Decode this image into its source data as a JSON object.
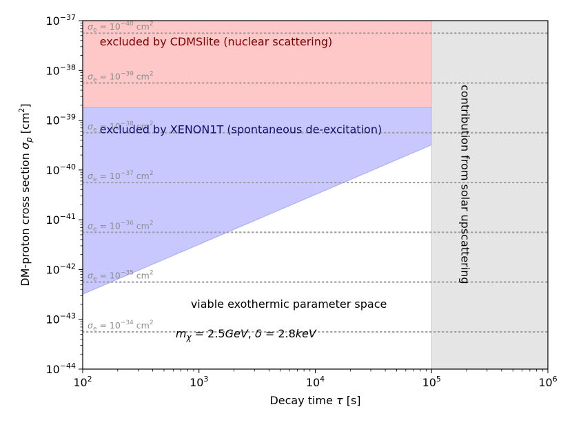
{
  "chart_data": {
    "type": "area",
    "xlabel": "Decay time τ [s]",
    "ylabel": "DM-proton cross section σ",
    "ylabel_sub": "p",
    "ylabel_unit": "[cm",
    "ylabel_unit_exp": "2",
    "ylabel_unit_close": "]",
    "x_scale": "log",
    "y_scale": "log",
    "xlim": [
      100,
      1000000
    ],
    "ylim": [
      1e-44,
      1e-37
    ],
    "x_ticks": [
      {
        "value": 100,
        "base": "10",
        "exp": "2"
      },
      {
        "value": 1000,
        "base": "10",
        "exp": "3"
      },
      {
        "value": 10000,
        "base": "10",
        "exp": "4"
      },
      {
        "value": 100000,
        "base": "10",
        "exp": "5"
      },
      {
        "value": 1000000,
        "base": "10",
        "exp": "6"
      }
    ],
    "y_ticks": [
      {
        "value": 1e-44,
        "base": "10",
        "exp": "−44"
      },
      {
        "value": 1e-43,
        "base": "10",
        "exp": "−43"
      },
      {
        "value": 1e-42,
        "base": "10",
        "exp": "−42"
      },
      {
        "value": 1e-41,
        "base": "10",
        "exp": "−41"
      },
      {
        "value": 1e-40,
        "base": "10",
        "exp": "−40"
      },
      {
        "value": 1e-39,
        "base": "10",
        "exp": "−39"
      },
      {
        "value": 1e-38,
        "base": "10",
        "exp": "−38"
      },
      {
        "value": 1e-37,
        "base": "10",
        "exp": "−37"
      }
    ],
    "regions": [
      {
        "label": "excluded by CDMSlite (nuclear scattering)",
        "color": "#ffc8c8",
        "edge_color": "#ffc8c8",
        "text_color": "#7a0000",
        "polygon": [
          [
            100,
            1e-37
          ],
          [
            100000,
            1e-37
          ],
          [
            100000,
            1.8e-39
          ],
          [
            100,
            1.8e-39
          ]
        ],
        "label_at": [
          140,
          3.2e-38
        ]
      },
      {
        "label": "excluded by XENON1T (spontaneous de-excitation)",
        "color": "#c8c8ff",
        "edge_color": "#a8a8f0",
        "text_color": "#10106e",
        "polygon": [
          [
            100,
            1.8e-39
          ],
          [
            100000,
            1.8e-39
          ],
          [
            100000,
            3.2e-40
          ],
          [
            100,
            3.2e-43
          ]
        ],
        "label_at": [
          140,
          5.5e-40
        ]
      },
      {
        "label": "contribution from solar upscattering",
        "color": "#e5e5e5",
        "edge_color": "#c8c8c8",
        "text_color": "#000000",
        "polygon": [
          [
            100000,
            1e-37
          ],
          [
            1000000,
            1e-37
          ],
          [
            1000000,
            1e-44
          ],
          [
            100000,
            1e-44
          ]
        ],
        "label_at": [
          180000,
          1e-40
        ],
        "rotate": true
      }
    ],
    "iso_sigma_e": [
      {
        "base": "σ",
        "sub": "e",
        "mid": " = 10",
        "exp": "−40",
        "unit": " cm",
        "unit_exp": "2",
        "y_value": 5.6e-38
      },
      {
        "base": "σ",
        "sub": "e",
        "mid": " = 10",
        "exp": "−39",
        "unit": " cm",
        "unit_exp": "2",
        "y_value": 5.6e-39
      },
      {
        "base": "σ",
        "sub": "e",
        "mid": " = 10",
        "exp": "−38",
        "unit": " cm",
        "unit_exp": "2",
        "y_value": 5.6e-40
      },
      {
        "base": "σ",
        "sub": "e",
        "mid": " = 10",
        "exp": "−37",
        "unit": " cm",
        "unit_exp": "2",
        "y_value": 5.6e-41
      },
      {
        "base": "σ",
        "sub": "e",
        "mid": " = 10",
        "exp": "−36",
        "unit": " cm",
        "unit_exp": "2",
        "y_value": 5.6e-42
      },
      {
        "base": "σ",
        "sub": "e",
        "mid": " = 10",
        "exp": "−35",
        "unit": " cm",
        "unit_exp": "2",
        "y_value": 5.6e-43
      },
      {
        "base": "σ",
        "sub": "e",
        "mid": " = 10",
        "exp": "−34",
        "unit": " cm",
        "unit_exp": "2",
        "y_value": 5.6e-44
      }
    ],
    "annotations": [
      {
        "text": "viable exothermic parameter space",
        "at": [
          850,
          1.7e-43
        ]
      },
      {
        "parts": [
          {
            "t": "m",
            "style": "italic"
          },
          {
            "t": "χ",
            "style": "italic-sub"
          },
          {
            "t": " = 2.5",
            "style": "normal"
          },
          {
            "t": "GeV",
            "style": "italic"
          },
          {
            "t": ", ",
            "style": "normal"
          },
          {
            "t": "δ",
            "style": "italic"
          },
          {
            "t": " = 2.8",
            "style": "normal"
          },
          {
            "t": "keV",
            "style": "italic"
          }
        ],
        "at": [
          630,
          4.3e-44
        ]
      }
    ]
  }
}
